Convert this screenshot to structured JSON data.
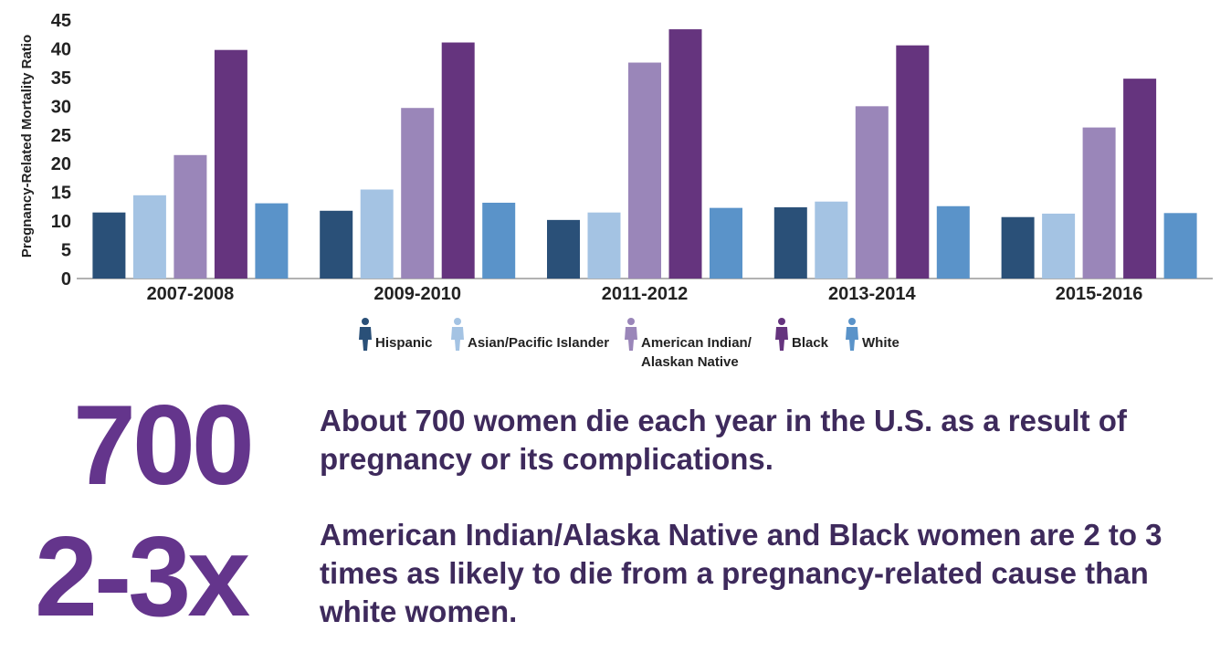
{
  "chart_data": {
    "type": "bar",
    "ylabel": "Pregnancy-Related Mortality Ratio",
    "xlabel": "",
    "ylim": [
      0,
      45
    ],
    "yticks": [
      0,
      5,
      10,
      15,
      20,
      25,
      30,
      35,
      40,
      45
    ],
    "categories": [
      "2007-2008",
      "2009-2010",
      "2011-2012",
      "2013-2014",
      "2015-2016"
    ],
    "legend_position": "bottom-center",
    "grid": false,
    "series": [
      {
        "name": "Hispanic",
        "color": "#2a5078",
        "values": [
          11.5,
          11.8,
          10.2,
          12.4,
          10.7
        ]
      },
      {
        "name": "Asian/Pacific Islander",
        "color": "#a4c3e3",
        "values": [
          14.5,
          15.5,
          11.5,
          13.4,
          11.3
        ]
      },
      {
        "name": "American Indian/\nAlaskan Native",
        "color": "#9a86b9",
        "values": [
          21.5,
          29.7,
          37.6,
          30.0,
          26.3
        ]
      },
      {
        "name": "Black",
        "color": "#65347e",
        "values": [
          39.8,
          41.1,
          43.4,
          40.6,
          34.8
        ]
      },
      {
        "name": "White",
        "color": "#5a93c9",
        "values": [
          13.1,
          13.2,
          12.3,
          12.6,
          11.4
        ]
      }
    ]
  },
  "stats": [
    {
      "number": "700",
      "text": "About 700 women die each year in the U.S. as a result of pregnancy or its complications."
    },
    {
      "number": "2-3x",
      "text": "American Indian/Alaska Native and Black women are 2 to 3 times as likely to die from a pregnancy-related cause than white women."
    }
  ]
}
